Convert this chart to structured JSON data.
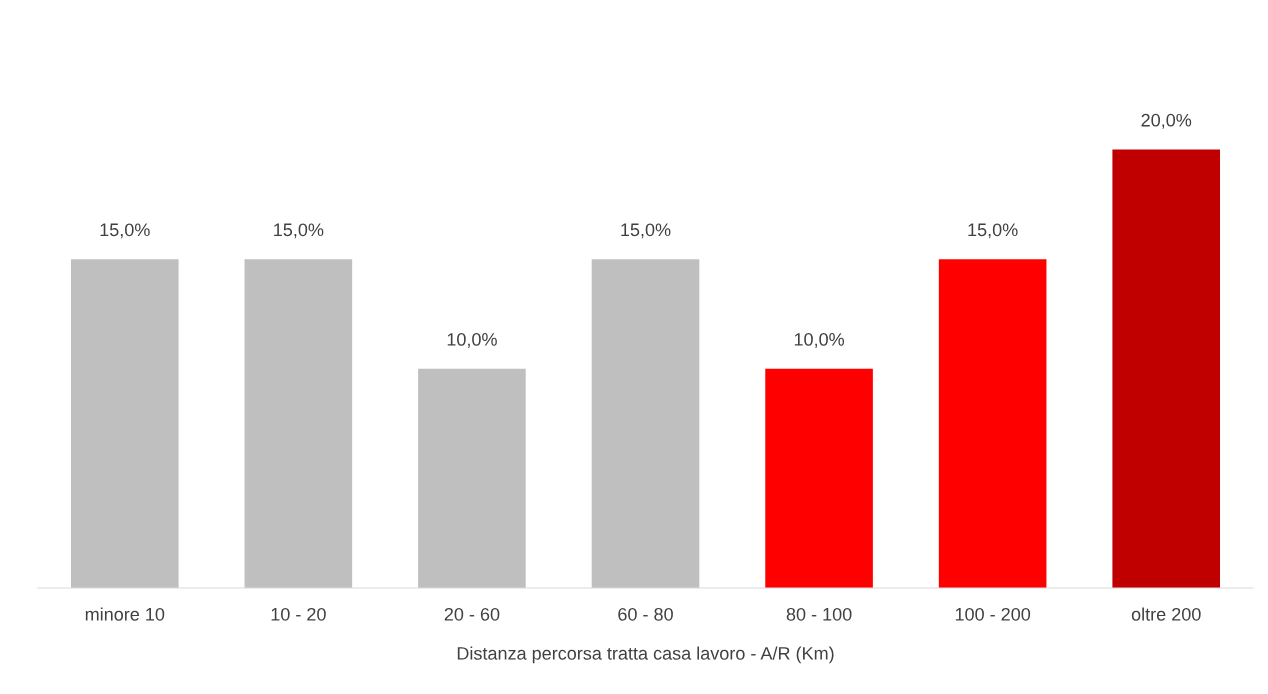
{
  "chart_data": {
    "type": "bar",
    "xlabel": "Distanza percorsa tratta casa lavoro - A/R (Km)",
    "categories": [
      "minore 10",
      "10 - 20",
      "20 - 60",
      "60 - 80",
      "80 - 100",
      "100 - 200",
      "oltre 200"
    ],
    "values": [
      15,
      15,
      10,
      15,
      10,
      15,
      20
    ],
    "colors": [
      "#bfbfbf",
      "#bfbfbf",
      "#bfbfbf",
      "#bfbfbf",
      "#ff0000",
      "#ff0000",
      "#c00000"
    ],
    "value_labels": [
      "15,0%",
      "15,0%",
      "10,0%",
      "15,0%",
      "10,0%",
      "15,0%",
      "20,0%"
    ],
    "grid": false,
    "legend": false
  }
}
